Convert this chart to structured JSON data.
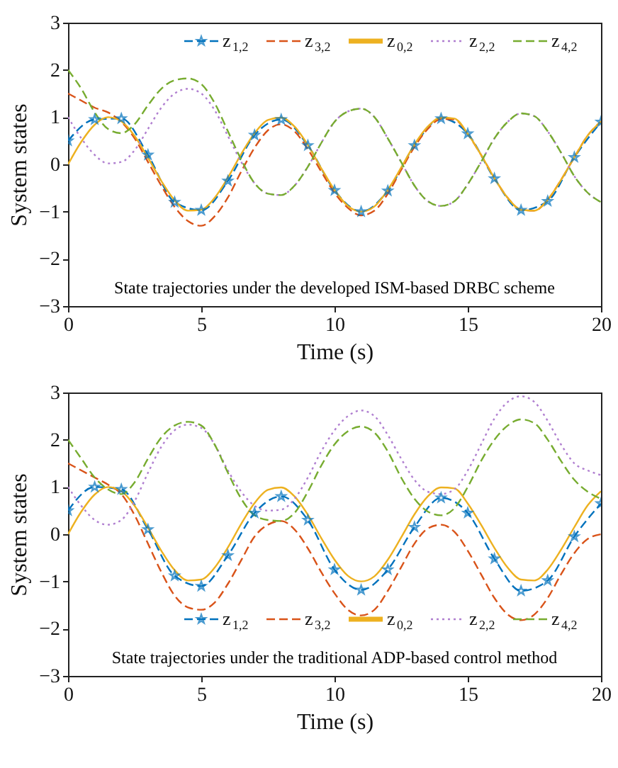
{
  "chart_data": [
    {
      "type": "line",
      "xlabel": "Time (s)",
      "ylabel": "System states",
      "xlim": [
        0,
        20
      ],
      "ylim": [
        -3,
        3
      ],
      "xticks": [
        0,
        5,
        10,
        15,
        20
      ],
      "yticks": [
        -3,
        -2,
        -1,
        0,
        1,
        2,
        3
      ],
      "grid": false,
      "legend": "top right",
      "x": [
        0,
        0.5,
        1,
        1.5,
        2,
        2.5,
        3,
        3.5,
        4,
        4.5,
        5,
        5.5,
        6,
        6.5,
        7,
        7.5,
        8,
        8.5,
        9,
        9.5,
        10,
        10.5,
        11,
        11.5,
        12,
        12.5,
        13,
        13.5,
        14,
        14.5,
        15,
        15.5,
        16,
        16.5,
        17,
        17.5,
        18,
        18.5,
        19,
        19.5,
        20
      ],
      "annotations": [
        "State trajectories under the developed ISM-based DRBC scheme"
      ],
      "series": [
        {
          "name": "z$_{1,2}$",
          "color": "#0072bd",
          "line_style": "dashed",
          "marker": "star",
          "x": [
            0,
            1,
            2,
            3,
            4,
            5,
            6,
            7,
            8,
            9,
            10,
            11,
            12,
            13,
            14,
            15,
            16,
            17,
            18,
            19,
            20
          ],
          "values": [
            0.5,
            0.95,
            0.97,
            0.2,
            -0.8,
            -0.97,
            -0.35,
            0.62,
            0.95,
            0.4,
            -0.55,
            -1.0,
            -0.56,
            0.4,
            0.97,
            0.65,
            -0.3,
            -0.97,
            -0.78,
            0.15,
            0.9
          ]
        },
        {
          "name": "z$_{3,2}$",
          "color": "#d95319",
          "line_style": "dashed",
          "values": [
            1.5,
            1.35,
            1.2,
            1.1,
            0.9,
            0.55,
            0.05,
            -0.45,
            -0.9,
            -1.2,
            -1.3,
            -1.1,
            -0.7,
            -0.15,
            0.35,
            0.72,
            0.85,
            0.7,
            0.32,
            -0.15,
            -0.6,
            -0.92,
            -1.08,
            -0.98,
            -0.62,
            -0.12,
            0.37,
            0.75,
            0.96,
            0.95,
            0.64,
            0.2,
            -0.29,
            -0.71,
            -0.96,
            -0.98,
            -0.75,
            -0.33,
            0.15,
            0.61,
            0.91
          ]
        },
        {
          "name": "z$_{0,2}$",
          "color": "#edb120",
          "line_style": "solid",
          "values": [
            0,
            0.48,
            0.84,
            1.0,
            0.91,
            0.6,
            0.14,
            -0.35,
            -0.76,
            -0.98,
            -0.96,
            -0.71,
            -0.28,
            0.22,
            0.66,
            0.94,
            0.99,
            0.8,
            0.41,
            -0.08,
            -0.54,
            -0.88,
            -1.0,
            -0.89,
            -0.54,
            -0.07,
            0.42,
            0.8,
            0.99,
            0.97,
            0.65,
            0.2,
            -0.29,
            -0.71,
            -0.96,
            -0.98,
            -0.75,
            -0.33,
            0.15,
            0.61,
            0.91
          ]
        },
        {
          "name": "z$_{2,2}$",
          "color": "#b07fd0",
          "line_style": "dotted",
          "values": [
            1.0,
            0.55,
            0.2,
            0.02,
            0.05,
            0.3,
            0.75,
            1.2,
            1.5,
            1.6,
            1.5,
            1.15,
            0.6,
            0.05,
            -0.4,
            -0.62,
            -0.65,
            -0.45,
            -0.05,
            0.45,
            0.9,
            1.12,
            1.18,
            1.0,
            0.55,
            0.05,
            -0.45,
            -0.78,
            -0.88,
            -0.78,
            -0.42,
            0.05,
            0.55,
            0.9,
            1.08,
            1.02,
            0.7,
            0.25,
            -0.25,
            -0.6,
            -0.8
          ]
        },
        {
          "name": "z$_{4,2}$",
          "color": "#77ac30",
          "line_style": "dashed",
          "values": [
            2.0,
            1.6,
            1.1,
            0.75,
            0.66,
            0.85,
            1.25,
            1.6,
            1.78,
            1.82,
            1.7,
            1.3,
            0.7,
            0.1,
            -0.4,
            -0.62,
            -0.65,
            -0.45,
            -0.05,
            0.45,
            0.9,
            1.12,
            1.18,
            1.0,
            0.55,
            0.05,
            -0.45,
            -0.78,
            -0.88,
            -0.78,
            -0.42,
            0.05,
            0.55,
            0.9,
            1.08,
            1.02,
            0.7,
            0.25,
            -0.25,
            -0.6,
            -0.8
          ]
        }
      ]
    },
    {
      "type": "line",
      "xlabel": "Time (s)",
      "ylabel": "System states",
      "xlim": [
        0,
        20
      ],
      "ylim": [
        -3,
        3
      ],
      "xticks": [
        0,
        5,
        10,
        15,
        20
      ],
      "yticks": [
        -3,
        -2,
        -1,
        0,
        1,
        2,
        3
      ],
      "grid": false,
      "legend": "bottom right",
      "x": [
        0,
        0.5,
        1,
        1.5,
        2,
        2.5,
        3,
        3.5,
        4,
        4.5,
        5,
        5.5,
        6,
        6.5,
        7,
        7.5,
        8,
        8.5,
        9,
        9.5,
        10,
        10.5,
        11,
        11.5,
        12,
        12.5,
        13,
        13.5,
        14,
        14.5,
        15,
        15.5,
        16,
        16.5,
        17,
        17.5,
        18,
        18.5,
        19,
        19.5,
        20
      ],
      "annotations": [
        "State trajectories under the traditional ADP-based control method"
      ],
      "series": [
        {
          "name": "z$_{1,2}$",
          "color": "#0072bd",
          "line_style": "dashed",
          "marker": "star",
          "x": [
            0,
            1,
            2,
            3,
            4,
            5,
            6,
            7,
            8,
            9,
            10,
            11,
            12,
            13,
            14,
            15,
            16,
            17,
            18,
            19,
            20
          ],
          "values": [
            0.5,
            1.0,
            0.95,
            0.1,
            -0.88,
            -1.1,
            -0.45,
            0.45,
            0.8,
            0.3,
            -0.75,
            -1.18,
            -0.75,
            0.15,
            0.77,
            0.45,
            -0.52,
            -1.2,
            -0.98,
            -0.05,
            0.65
          ]
        },
        {
          "name": "z$_{3,2}$",
          "color": "#d95319",
          "line_style": "dashed",
          "values": [
            1.5,
            1.35,
            1.2,
            1.05,
            0.85,
            0.4,
            -0.2,
            -0.8,
            -1.3,
            -1.55,
            -1.6,
            -1.45,
            -1.05,
            -0.55,
            -0.05,
            0.2,
            0.28,
            0.1,
            -0.3,
            -0.8,
            -1.25,
            -1.6,
            -1.72,
            -1.6,
            -1.2,
            -0.7,
            -0.2,
            0.12,
            0.2,
            0.05,
            -0.35,
            -0.85,
            -1.35,
            -1.7,
            -1.82,
            -1.7,
            -1.35,
            -0.85,
            -0.4,
            -0.1,
            0
          ]
        },
        {
          "name": "z$_{0,2}$",
          "color": "#edb120",
          "line_style": "solid",
          "values": [
            0,
            0.48,
            0.84,
            1.0,
            0.91,
            0.6,
            0.14,
            -0.35,
            -0.76,
            -0.98,
            -0.96,
            -0.71,
            -0.28,
            0.22,
            0.66,
            0.94,
            0.99,
            0.8,
            0.41,
            -0.08,
            -0.54,
            -0.88,
            -1.0,
            -0.89,
            -0.54,
            -0.07,
            0.42,
            0.8,
            0.99,
            0.97,
            0.65,
            0.2,
            -0.29,
            -0.71,
            -0.96,
            -0.98,
            -0.75,
            -0.33,
            0.15,
            0.61,
            0.91
          ]
        },
        {
          "name": "z$_{2,2}$",
          "color": "#b07fd0",
          "line_style": "dotted",
          "values": [
            1.0,
            0.6,
            0.3,
            0.2,
            0.3,
            0.7,
            1.3,
            1.85,
            2.2,
            2.32,
            2.25,
            1.9,
            1.35,
            0.9,
            0.6,
            0.5,
            0.52,
            0.75,
            1.2,
            1.75,
            2.2,
            2.5,
            2.62,
            2.5,
            2.1,
            1.6,
            1.15,
            0.9,
            0.85,
            0.95,
            1.35,
            1.9,
            2.45,
            2.8,
            2.92,
            2.8,
            2.4,
            1.9,
            1.5,
            1.35,
            1.25
          ]
        },
        {
          "name": "z$_{4,2}$",
          "color": "#77ac30",
          "line_style": "dashed",
          "values": [
            2.0,
            1.6,
            1.2,
            0.95,
            0.85,
            1.1,
            1.6,
            2.05,
            2.3,
            2.38,
            2.3,
            1.9,
            1.3,
            0.75,
            0.4,
            0.3,
            0.28,
            0.45,
            0.9,
            1.45,
            1.9,
            2.18,
            2.28,
            2.15,
            1.75,
            1.2,
            0.75,
            0.48,
            0.4,
            0.55,
            1.0,
            1.55,
            2.0,
            2.3,
            2.43,
            2.35,
            2.0,
            1.55,
            1.15,
            0.9,
            0.75
          ]
        }
      ]
    }
  ]
}
